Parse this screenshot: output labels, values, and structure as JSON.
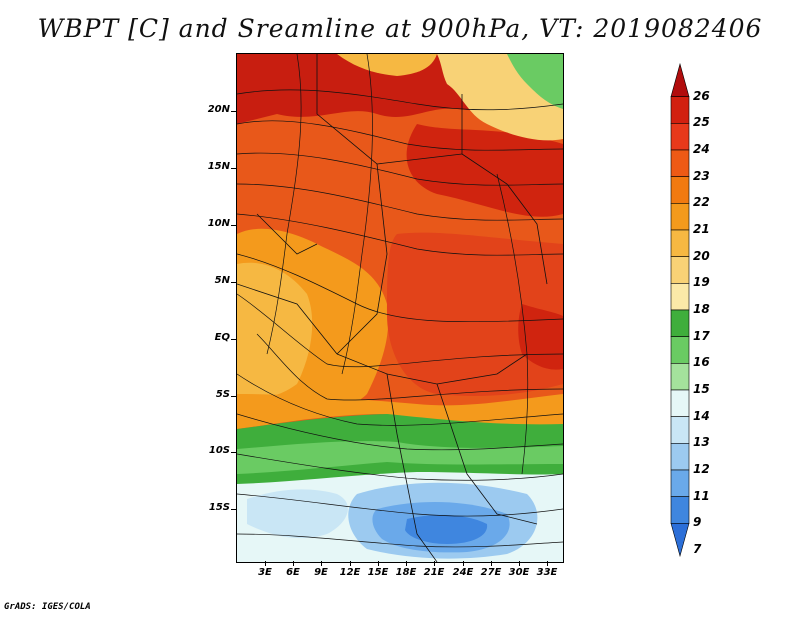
{
  "title": "WBPT [C] and Sreamline at 900hPa, VT: 2019082406",
  "credit": "GrADS: IGES/COLA",
  "lat_labels": [
    "20N",
    "15N",
    "10N",
    "5N",
    "EQ",
    "5S",
    "10S",
    "15S"
  ],
  "lon_labels": [
    "3E",
    "6E",
    "9E",
    "12E",
    "15E",
    "18E",
    "21E",
    "24E",
    "27E",
    "30E",
    "33E"
  ],
  "colorbar": {
    "levels": [
      "26",
      "25",
      "24",
      "23",
      "22",
      "21",
      "20",
      "19",
      "18",
      "17",
      "16",
      "15",
      "14",
      "13",
      "12",
      "11",
      "9",
      "7"
    ],
    "colors": [
      "#b10d0d",
      "#d2200f",
      "#e8391b",
      "#ee5a15",
      "#f17a10",
      "#f49a1c",
      "#f6b842",
      "#f8d276",
      "#fbe9a8",
      "#3fae3c",
      "#6acb63",
      "#a4e29c",
      "#e6f7f7",
      "#c9e6f5",
      "#9ccaf0",
      "#6aa9ea",
      "#3f86df",
      "#2c6fd8"
    ]
  }
}
